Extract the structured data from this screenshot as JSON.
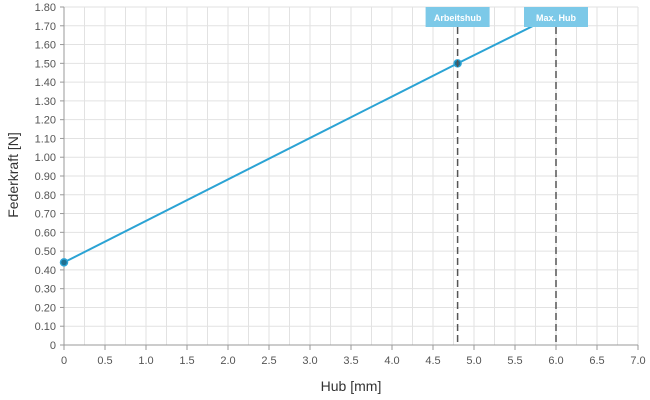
{
  "chart_data": {
    "type": "line",
    "xlabel": "Hub [mm]",
    "ylabel": "Federkraft [N]",
    "xlim": [
      0,
      7.0
    ],
    "ylim": [
      0,
      1.8
    ],
    "x_ticks": [
      "0",
      "0.5",
      "1.0",
      "1.5",
      "2.0",
      "2.5",
      "3.0",
      "3.5",
      "4.0",
      "4.5",
      "5.0",
      "5.5",
      "6.0",
      "6.5",
      "7.0"
    ],
    "y_ticks": [
      "0",
      "0.10",
      "0.20",
      "0.30",
      "0.40",
      "0.50",
      "0.60",
      "0.70",
      "0.80",
      "0.90",
      "1.00",
      "1.10",
      "1.20",
      "1.30",
      "1.40",
      "1.50",
      "1.60",
      "1.70",
      "1.80"
    ],
    "grid": true,
    "series": [
      {
        "points": [
          {
            "x": 0,
            "y": 0.44
          },
          {
            "x": 4.8,
            "y": 1.5
          },
          {
            "x": 6.0,
            "y": 1.76
          }
        ]
      }
    ],
    "markers": [
      {
        "label": "Arbeitshub",
        "x": 4.8
      },
      {
        "label": "Max. Hub",
        "x": 6.0
      }
    ],
    "colors": {
      "line": "#2ba3d4",
      "point": "#1f6f91",
      "marker_box": "#7cc9e8",
      "marker_line": "#555555",
      "grid": "#e2e2e2",
      "axis": "#999999"
    }
  }
}
